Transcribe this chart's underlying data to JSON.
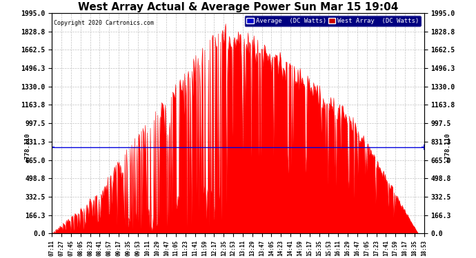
{
  "title": "West Array Actual & Average Power Sun Mar 15 19:04",
  "copyright": "Copyright 2020 Cartronics.com",
  "average_value": 778.11,
  "y_max": 1995.0,
  "y_min": 0.0,
  "yticks": [
    0.0,
    166.3,
    332.5,
    498.8,
    665.0,
    831.3,
    997.5,
    1163.8,
    1330.0,
    1496.3,
    1662.5,
    1828.8,
    1995.0
  ],
  "legend_avg_label": "Average  (DC Watts)",
  "legend_west_label": "West Array  (DC Watts)",
  "legend_avg_color": "#0000cc",
  "legend_west_bg": "#000099",
  "legend_west_color": "#cc0000",
  "avg_line_color": "#0000dd",
  "fill_color": "#ff0000",
  "bg_color": "#ffffff",
  "grid_color": "#bbbbbb",
  "title_fontsize": 11,
  "ylabel_fontsize": 7,
  "xtick_labels": [
    "07:11",
    "07:27",
    "07:45",
    "08:05",
    "08:23",
    "08:41",
    "08:57",
    "09:17",
    "09:35",
    "09:53",
    "10:11",
    "10:29",
    "10:47",
    "11:05",
    "11:23",
    "11:41",
    "11:59",
    "12:17",
    "12:35",
    "12:53",
    "13:11",
    "13:29",
    "13:47",
    "14:05",
    "14:23",
    "14:41",
    "14:59",
    "15:17",
    "15:35",
    "15:53",
    "16:11",
    "16:29",
    "16:47",
    "17:05",
    "17:23",
    "17:41",
    "17:59",
    "18:17",
    "18:35",
    "18:53"
  ]
}
